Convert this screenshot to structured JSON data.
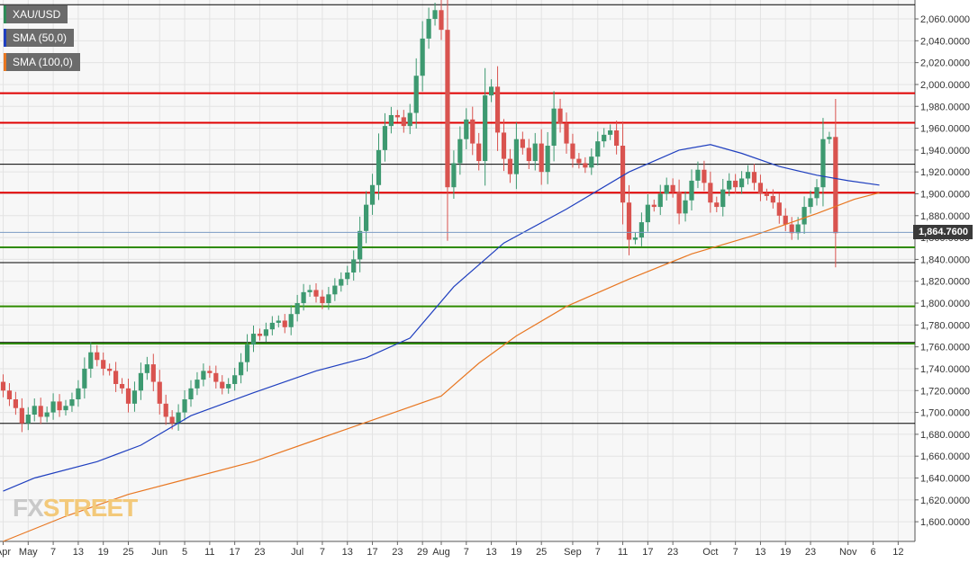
{
  "chart_data": {
    "type": "candlestick",
    "instrument": "XAU/USD",
    "legend": [
      {
        "label": "XAU/USD",
        "color": "#2e8b57"
      },
      {
        "label": "SMA (50,0)",
        "color": "#1f3fbf"
      },
      {
        "label": "SMA (100,0)",
        "color": "#e87722"
      }
    ],
    "current_price": "1,864.7600",
    "watermark": {
      "part1": "FX",
      "part2": "STREET"
    },
    "ylim": [
      1582,
      2074
    ],
    "y_ticks": [
      {
        "value": 1600,
        "label": "1,600.0000"
      },
      {
        "value": 1620,
        "label": "1,620.0000"
      },
      {
        "value": 1640,
        "label": "1,640.0000"
      },
      {
        "value": 1660,
        "label": "1,660.0000"
      },
      {
        "value": 1680,
        "label": "1,680.0000"
      },
      {
        "value": 1700,
        "label": "1,700.0000"
      },
      {
        "value": 1720,
        "label": "1,720.0000"
      },
      {
        "value": 1740,
        "label": "1,740.0000"
      },
      {
        "value": 1760,
        "label": "1,760.0000"
      },
      {
        "value": 1780,
        "label": "1,780.0000"
      },
      {
        "value": 1800,
        "label": "1,800.0000"
      },
      {
        "value": 1820,
        "label": "1,820.0000"
      },
      {
        "value": 1840,
        "label": "1,840.0000"
      },
      {
        "value": 1860,
        "label": "1,860.0000"
      },
      {
        "value": 1880,
        "label": "1,880.0000"
      },
      {
        "value": 1900,
        "label": "1,900.0000"
      },
      {
        "value": 1920,
        "label": "1,920.0000"
      },
      {
        "value": 1940,
        "label": "1,940.0000"
      },
      {
        "value": 1960,
        "label": "1,960.0000"
      },
      {
        "value": 1980,
        "label": "1,980.0000"
      },
      {
        "value": 2000,
        "label": "2,000.0000"
      },
      {
        "value": 2020,
        "label": "2,020.0000"
      },
      {
        "value": 2040,
        "label": "2,040.0000"
      },
      {
        "value": 2060,
        "label": "2,060.0000"
      }
    ],
    "x_ticks": [
      {
        "index": 0,
        "label": "Apr"
      },
      {
        "index": 4,
        "label": "May"
      },
      {
        "index": 8,
        "label": "7"
      },
      {
        "index": 12,
        "label": "13"
      },
      {
        "index": 16,
        "label": "19"
      },
      {
        "index": 20,
        "label": "25"
      },
      {
        "index": 25,
        "label": "Jun"
      },
      {
        "index": 29,
        "label": "5"
      },
      {
        "index": 33,
        "label": "11"
      },
      {
        "index": 37,
        "label": "17"
      },
      {
        "index": 41,
        "label": "23"
      },
      {
        "index": 47,
        "label": "Jul"
      },
      {
        "index": 51,
        "label": "7"
      },
      {
        "index": 55,
        "label": "13"
      },
      {
        "index": 59,
        "label": "17"
      },
      {
        "index": 63,
        "label": "23"
      },
      {
        "index": 67,
        "label": "29"
      },
      {
        "index": 70,
        "label": "Aug"
      },
      {
        "index": 74,
        "label": "7"
      },
      {
        "index": 78,
        "label": "13"
      },
      {
        "index": 82,
        "label": "19"
      },
      {
        "index": 86,
        "label": "25"
      },
      {
        "index": 91,
        "label": "Sep"
      },
      {
        "index": 95,
        "label": "7"
      },
      {
        "index": 99,
        "label": "11"
      },
      {
        "index": 103,
        "label": "17"
      },
      {
        "index": 107,
        "label": "23"
      },
      {
        "index": 113,
        "label": "Oct"
      },
      {
        "index": 117,
        "label": "7"
      },
      {
        "index": 121,
        "label": "13"
      },
      {
        "index": 125,
        "label": "19"
      },
      {
        "index": 129,
        "label": "23"
      },
      {
        "index": 135,
        "label": "Nov"
      },
      {
        "index": 139,
        "label": "6"
      },
      {
        "index": 143,
        "label": "12"
      }
    ],
    "horizontal_lines": [
      {
        "value": 2073,
        "color": "#000000"
      },
      {
        "value": 1992,
        "color": "#e00000"
      },
      {
        "value": 1965,
        "color": "#e00000"
      },
      {
        "value": 1927,
        "color": "#000000"
      },
      {
        "value": 1901,
        "color": "#e00000"
      },
      {
        "value": 1851,
        "color": "#2e8b00"
      },
      {
        "value": 1837,
        "color": "#000000"
      },
      {
        "value": 1797,
        "color": "#2e8b00"
      },
      {
        "value": 1764,
        "color": "#000000"
      },
      {
        "value": 1763,
        "color": "#2e8b00"
      },
      {
        "value": 1690,
        "color": "#000000"
      }
    ],
    "close_series": [
      1720,
      1712,
      1704,
      1690,
      1698,
      1706,
      1696,
      1700,
      1710,
      1702,
      1706,
      1712,
      1722,
      1740,
      1755,
      1748,
      1740,
      1738,
      1726,
      1722,
      1708,
      1720,
      1736,
      1744,
      1728,
      1708,
      1696,
      1690,
      1700,
      1712,
      1722,
      1730,
      1738,
      1736,
      1728,
      1722,
      1726,
      1734,
      1746,
      1762,
      1772,
      1770,
      1776,
      1782,
      1784,
      1778,
      1790,
      1800,
      1810,
      1812,
      1806,
      1800,
      1808,
      1816,
      1822,
      1828,
      1840,
      1866,
      1890,
      1908,
      1940,
      1962,
      1972,
      1970,
      1962,
      1974,
      2008,
      2042,
      2060,
      2068,
      2050,
      1906,
      1928,
      1950,
      1968,
      1946,
      1930,
      1990,
      1998,
      1956,
      1932,
      1918,
      1950,
      1942,
      1930,
      1946,
      1920,
      1944,
      1978,
      1964,
      1946,
      1932,
      1928,
      1924,
      1934,
      1948,
      1954,
      1958,
      1944,
      1892,
      1858,
      1860,
      1874,
      1890,
      1888,
      1900,
      1908,
      1902,
      1882,
      1894,
      1912,
      1922,
      1910,
      1892,
      1888,
      1904,
      1912,
      1906,
      1914,
      1920,
      1910,
      1900,
      1898,
      1892,
      1880,
      1872,
      1864,
      1872,
      1888,
      1896,
      1906,
      1950,
      1952,
      1864
    ],
    "sma50": [
      {
        "index": 0,
        "value": 1628
      },
      {
        "index": 5,
        "value": 1640
      },
      {
        "index": 15,
        "value": 1655
      },
      {
        "index": 22,
        "value": 1670
      },
      {
        "index": 30,
        "value": 1697
      },
      {
        "index": 40,
        "value": 1718
      },
      {
        "index": 50,
        "value": 1738
      },
      {
        "index": 58,
        "value": 1750
      },
      {
        "index": 65,
        "value": 1768
      },
      {
        "index": 72,
        "value": 1815
      },
      {
        "index": 80,
        "value": 1855
      },
      {
        "index": 90,
        "value": 1886
      },
      {
        "index": 100,
        "value": 1920
      },
      {
        "index": 108,
        "value": 1940
      },
      {
        "index": 113,
        "value": 1945
      },
      {
        "index": 118,
        "value": 1937
      },
      {
        "index": 124,
        "value": 1925
      },
      {
        "index": 130,
        "value": 1917
      },
      {
        "index": 135,
        "value": 1912
      },
      {
        "index": 140,
        "value": 1908
      }
    ],
    "sma100": [
      {
        "index": 0,
        "value": 1582
      },
      {
        "index": 10,
        "value": 1605
      },
      {
        "index": 20,
        "value": 1625
      },
      {
        "index": 30,
        "value": 1640
      },
      {
        "index": 40,
        "value": 1655
      },
      {
        "index": 50,
        "value": 1675
      },
      {
        "index": 60,
        "value": 1695
      },
      {
        "index": 70,
        "value": 1715
      },
      {
        "index": 76,
        "value": 1745
      },
      {
        "index": 82,
        "value": 1770
      },
      {
        "index": 90,
        "value": 1797
      },
      {
        "index": 100,
        "value": 1822
      },
      {
        "index": 110,
        "value": 1845
      },
      {
        "index": 120,
        "value": 1862
      },
      {
        "index": 130,
        "value": 1882
      },
      {
        "index": 136,
        "value": 1895
      },
      {
        "index": 140,
        "value": 1901
      }
    ]
  }
}
